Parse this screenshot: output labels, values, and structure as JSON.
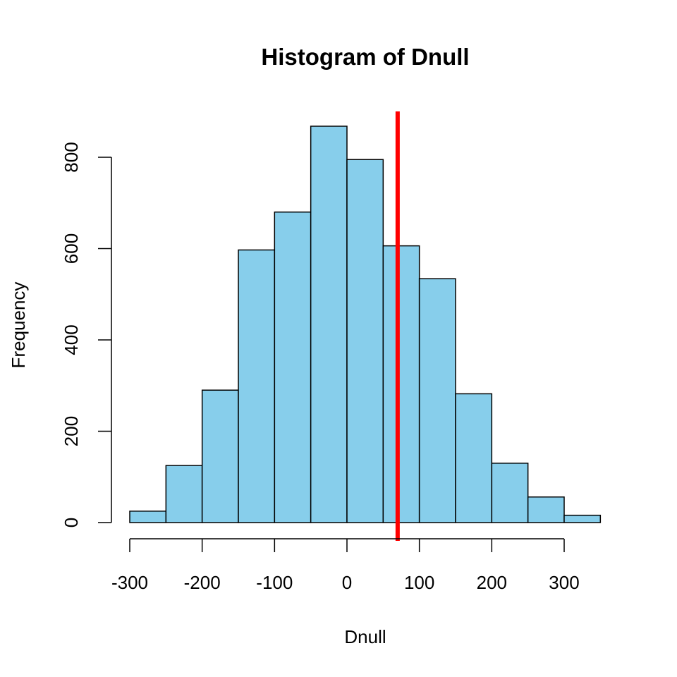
{
  "chart_data": {
    "type": "bar",
    "title": "Histogram of Dnull",
    "xlabel": "Dnull",
    "ylabel": "Frequency",
    "bins": [
      {
        "start": -300,
        "end": -250,
        "count": 25
      },
      {
        "start": -250,
        "end": -200,
        "count": 125
      },
      {
        "start": -200,
        "end": -150,
        "count": 290
      },
      {
        "start": -150,
        "end": -100,
        "count": 597
      },
      {
        "start": -100,
        "end": -50,
        "count": 680
      },
      {
        "start": -50,
        "end": 0,
        "count": 868
      },
      {
        "start": 0,
        "end": 50,
        "count": 795
      },
      {
        "start": 50,
        "end": 100,
        "count": 606
      },
      {
        "start": 100,
        "end": 150,
        "count": 534
      },
      {
        "start": 150,
        "end": 200,
        "count": 282
      },
      {
        "start": 200,
        "end": 250,
        "count": 130
      },
      {
        "start": 250,
        "end": 300,
        "count": 56
      },
      {
        "start": 300,
        "end": 350,
        "count": 16
      }
    ],
    "xticks": [
      -300,
      -200,
      -100,
      0,
      100,
      200,
      300
    ],
    "xtick_labels": [
      "-300",
      "-200",
      "-100",
      "0",
      "100",
      "200",
      "300"
    ],
    "yticks": [
      0,
      200,
      400,
      600,
      800
    ],
    "ytick_labels": [
      "0",
      "200",
      "400",
      "600",
      "800"
    ],
    "xlim": [
      -300,
      350
    ],
    "ylim": [
      0,
      868
    ],
    "reference_line": {
      "x": 70,
      "color": "#ff0000"
    },
    "bar_color": "#87ceeb",
    "grid": false,
    "legend": "none"
  }
}
